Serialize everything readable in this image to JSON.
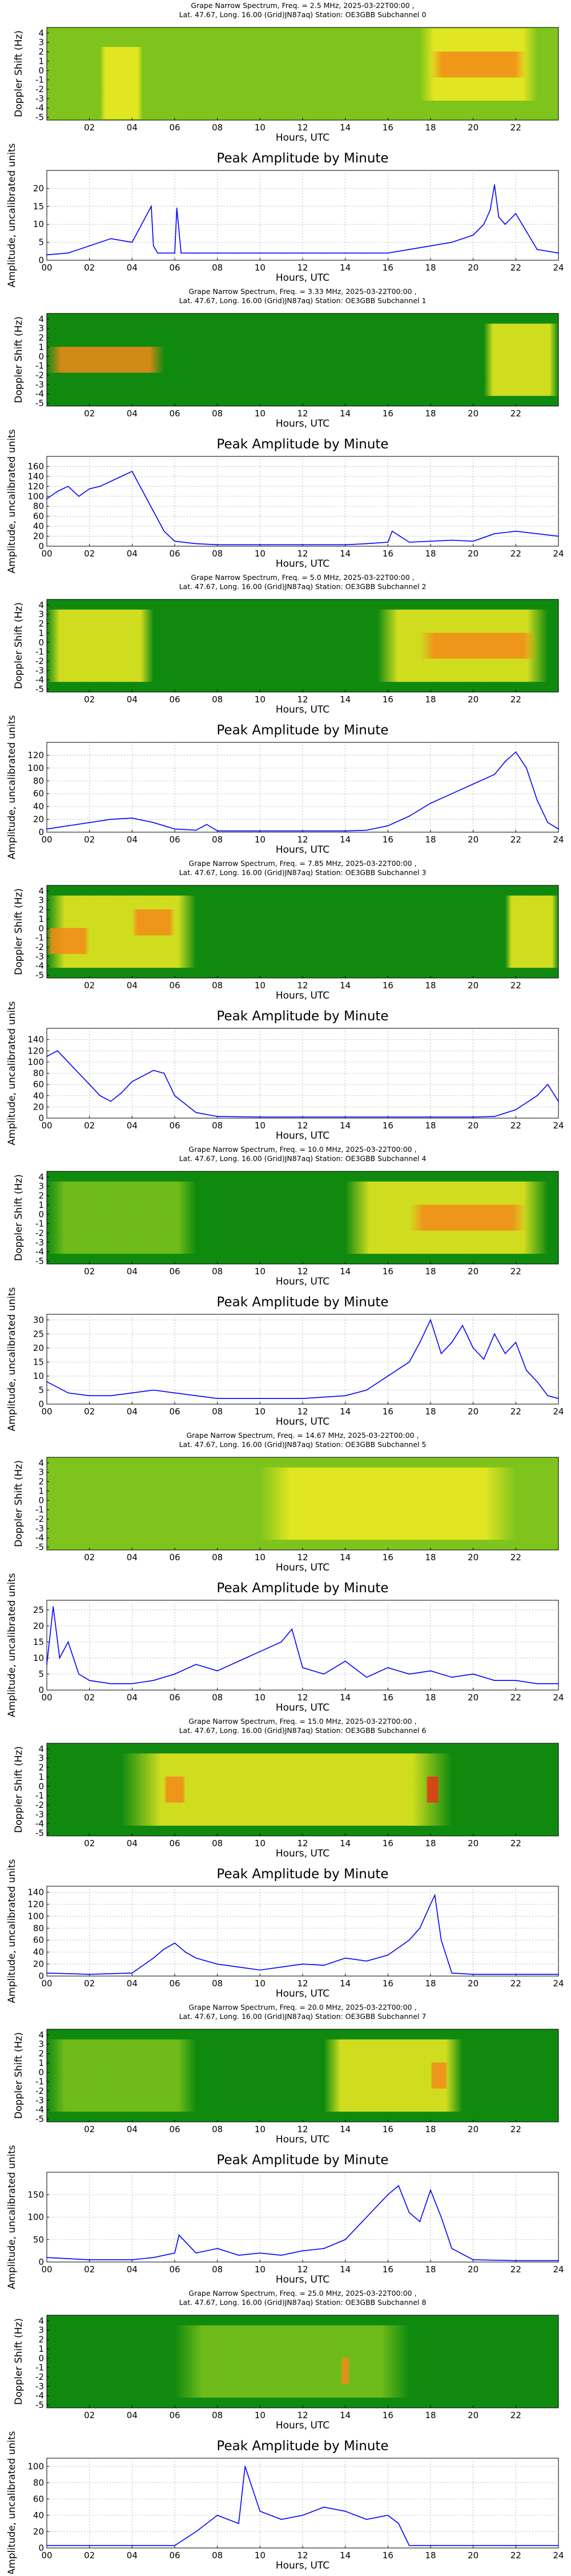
{
  "x_axis": {
    "label": "Hours, UTC",
    "ticks_spectrum": [
      "02",
      "04",
      "06",
      "08",
      "10",
      "12",
      "14",
      "16",
      "18",
      "20",
      "22"
    ],
    "ticks_amplitude": [
      "00",
      "02",
      "04",
      "06",
      "08",
      "10",
      "12",
      "14",
      "16",
      "18",
      "20",
      "22",
      "24"
    ]
  },
  "spectrum_ylabel": "Doppler Shift (Hz)",
  "spectrum_yticks": [
    "4",
    "3",
    "2",
    "1",
    "0",
    "-1",
    "-2",
    "-3",
    "-4",
    "-5"
  ],
  "amplitude_title": "Peak Amplitude by Minute",
  "amplitude_ylabel": "Amplitude, uncalibrated units",
  "colors": {
    "line": "#0000ff",
    "grid": "#aaaaaa",
    "spectrum_bg": "#0f8a0f"
  },
  "chart_data": [
    {
      "type": "heatmap",
      "title": "Grape Narrow Spectrum, Freq. = 2.5 MHz, 2025-03-22T00:00 ,",
      "subtitle": "Lat.  47.67, Long.  16.00 (Grid)JN87aq) Station: OE3GBB Subchannel 0",
      "xlabel": "Hours, UTC",
      "ylabel": "Doppler Shift (Hz)",
      "xlim": [
        0,
        24
      ],
      "ylim": [
        -5,
        5
      ],
      "base_color": "yellow-green",
      "activity": [
        {
          "from": 2.5,
          "to": 4.5,
          "color": "yellow",
          "center_hz": -1
        },
        {
          "from": 17.5,
          "to": 23,
          "color": "yellow",
          "center_hz": 1
        },
        {
          "from": 18,
          "to": 22.5,
          "color": "orange",
          "center_hz": 1
        }
      ]
    },
    {
      "type": "line",
      "title": "Peak Amplitude by Minute",
      "xlabel": "Hours, UTC",
      "ylabel": "Amplitude, uncalibrated units",
      "xlim": [
        0,
        24
      ],
      "ylim": [
        0,
        25
      ],
      "yticks": [
        0,
        5,
        10,
        15,
        20
      ],
      "x": [
        0,
        1,
        2,
        3,
        4,
        4.9,
        5,
        5.2,
        6,
        6.1,
        6.3,
        7,
        8,
        9,
        10,
        11,
        12,
        13,
        14,
        15,
        16,
        17,
        18,
        19,
        20,
        20.5,
        20.8,
        21,
        21.2,
        21.5,
        22,
        22.5,
        23,
        24
      ],
      "y": [
        1.5,
        2,
        4,
        6,
        5,
        15,
        4,
        2,
        2,
        14.5,
        2,
        2,
        2,
        2,
        2,
        2,
        2,
        2,
        2,
        2,
        2,
        3,
        4,
        5,
        7,
        10,
        14,
        21,
        12,
        10,
        13,
        8,
        3,
        2
      ]
    },
    {
      "type": "heatmap",
      "title": "Grape Narrow Spectrum, Freq. = 3.33 MHz, 2025-03-22T00:00 ,",
      "subtitle": "Lat.  47.67, Long.  16.00 (Grid)JN87aq) Station: OE3GBB Subchannel 1",
      "xlabel": "Hours, UTC",
      "ylabel": "Doppler Shift (Hz)",
      "xlim": [
        0,
        24
      ],
      "ylim": [
        -5,
        5
      ],
      "base_color": "green",
      "activity": [
        {
          "from": 0,
          "to": 5.5,
          "color": "orange",
          "center_hz": 0
        },
        {
          "from": 20.5,
          "to": 24,
          "color": "yellow",
          "center_hz": 0
        }
      ]
    },
    {
      "type": "line",
      "title": "Peak Amplitude by Minute",
      "xlabel": "Hours, UTC",
      "ylabel": "Amplitude, uncalibrated units",
      "xlim": [
        0,
        24
      ],
      "ylim": [
        0,
        180
      ],
      "yticks": [
        0,
        20,
        40,
        60,
        80,
        100,
        120,
        140,
        160
      ],
      "x": [
        0,
        0.5,
        1,
        1.5,
        2,
        2.5,
        3,
        3.5,
        4,
        4.5,
        5,
        5.5,
        6,
        7,
        8,
        10,
        12,
        14,
        15,
        16,
        16.2,
        17,
        18,
        19,
        20,
        21,
        22,
        23,
        24
      ],
      "y": [
        95,
        110,
        120,
        100,
        115,
        120,
        130,
        140,
        150,
        110,
        70,
        30,
        10,
        5,
        3,
        3,
        3,
        3,
        5,
        8,
        30,
        8,
        10,
        12,
        10,
        25,
        30,
        25,
        20
      ]
    },
    {
      "type": "heatmap",
      "title": "Grape Narrow Spectrum, Freq. = 5.0 MHz, 2025-03-22T00:00 ,",
      "subtitle": "Lat.  47.67, Long.  16.00 (Grid)JN87aq) Station: OE3GBB Subchannel 2",
      "xlabel": "Hours, UTC",
      "ylabel": "Doppler Shift (Hz)",
      "xlim": [
        0,
        24
      ],
      "ylim": [
        -5,
        5
      ],
      "base_color": "green",
      "activity": [
        {
          "from": 0,
          "to": 5,
          "color": "yellow",
          "center_hz": 0
        },
        {
          "from": 15.5,
          "to": 23.5,
          "color": "yellow",
          "center_hz": 0
        },
        {
          "from": 17.5,
          "to": 23,
          "color": "orange",
          "center_hz": 0
        }
      ]
    },
    {
      "type": "line",
      "title": "Peak Amplitude by Minute",
      "xlabel": "Hours, UTC",
      "ylabel": "Amplitude, uncalibrated units",
      "xlim": [
        0,
        24
      ],
      "ylim": [
        0,
        140
      ],
      "yticks": [
        0,
        20,
        40,
        60,
        80,
        100,
        120
      ],
      "x": [
        0,
        1,
        2,
        3,
        4,
        5,
        6,
        7,
        7.5,
        8,
        10,
        12,
        14,
        15,
        16,
        17,
        18,
        19,
        20,
        21,
        21.5,
        22,
        22.5,
        23,
        23.5,
        24
      ],
      "y": [
        5,
        10,
        15,
        20,
        22,
        15,
        5,
        3,
        12,
        2,
        2,
        2,
        2,
        3,
        10,
        25,
        45,
        60,
        75,
        90,
        110,
        125,
        100,
        50,
        15,
        5
      ]
    },
    {
      "type": "heatmap",
      "title": "Grape Narrow Spectrum, Freq. = 7.85 MHz, 2025-03-22T00:00 ,",
      "subtitle": "Lat.  47.67, Long.  16.00 (Grid)JN87aq) Station: OE3GBB Subchannel 3",
      "xlabel": "Hours, UTC",
      "ylabel": "Doppler Shift (Hz)",
      "xlim": [
        0,
        24
      ],
      "ylim": [
        -5,
        5
      ],
      "base_color": "green",
      "activity": [
        {
          "from": 0,
          "to": 7,
          "color": "yellow",
          "center_hz": 0
        },
        {
          "from": 0,
          "to": 2,
          "color": "orange",
          "center_hz": -1
        },
        {
          "from": 4,
          "to": 6,
          "color": "orange",
          "center_hz": 1
        },
        {
          "from": 21.5,
          "to": 24,
          "color": "yellow",
          "center_hz": 0
        }
      ]
    },
    {
      "type": "line",
      "title": "Peak Amplitude by Minute",
      "xlabel": "Hours, UTC",
      "ylabel": "Amplitude, uncalibrated units",
      "xlim": [
        0,
        24
      ],
      "ylim": [
        0,
        160
      ],
      "yticks": [
        0,
        20,
        40,
        60,
        80,
        100,
        120,
        140
      ],
      "x": [
        0,
        0.5,
        1,
        1.5,
        2,
        2.5,
        3,
        3.5,
        4,
        4.5,
        5,
        5.5,
        6,
        6.5,
        7,
        8,
        10,
        12,
        14,
        16,
        18,
        20,
        21,
        22,
        23,
        23.5,
        24
      ],
      "y": [
        110,
        120,
        100,
        80,
        60,
        40,
        30,
        45,
        65,
        75,
        85,
        80,
        40,
        25,
        10,
        3,
        2,
        2,
        2,
        2,
        2,
        2,
        3,
        15,
        40,
        60,
        30
      ]
    },
    {
      "type": "heatmap",
      "title": "Grape Narrow Spectrum, Freq. = 10.0 MHz, 2025-03-22T00:00 ,",
      "subtitle": "Lat.  47.67, Long.  16.00 (Grid)JN87aq) Station: OE3GBB Subchannel 4",
      "xlabel": "Hours, UTC",
      "ylabel": "Doppler Shift (Hz)",
      "xlim": [
        0,
        24
      ],
      "ylim": [
        -5,
        5
      ],
      "base_color": "green",
      "activity": [
        {
          "from": 0,
          "to": 7,
          "color": "yellow-green",
          "center_hz": 0
        },
        {
          "from": 14,
          "to": 23.5,
          "color": "yellow",
          "center_hz": 0
        },
        {
          "from": 17,
          "to": 22.5,
          "color": "orange",
          "center_hz": 0
        }
      ]
    },
    {
      "type": "line",
      "title": "Peak Amplitude by Minute",
      "xlabel": "Hours, UTC",
      "ylabel": "Amplitude, uncalibrated units",
      "xlim": [
        0,
        24
      ],
      "ylim": [
        0,
        32
      ],
      "yticks": [
        0,
        5,
        10,
        15,
        20,
        25,
        30
      ],
      "x": [
        0,
        1,
        2,
        3,
        4,
        5,
        6,
        7,
        8,
        10,
        12,
        14,
        15,
        16,
        17,
        17.5,
        18,
        18.5,
        19,
        19.5,
        20,
        20.5,
        21,
        21.5,
        22,
        22.5,
        23,
        23.5,
        24
      ],
      "y": [
        8,
        4,
        3,
        3,
        4,
        5,
        4,
        3,
        2,
        2,
        2,
        3,
        5,
        10,
        15,
        22,
        30,
        18,
        22,
        28,
        20,
        16,
        25,
        18,
        22,
        12,
        8,
        3,
        2
      ]
    },
    {
      "type": "heatmap",
      "title": "Grape Narrow Spectrum, Freq. = 14.67 MHz, 2025-03-22T00:00 ,",
      "subtitle": "Lat.  47.67, Long.  16.00 (Grid)JN87aq) Station: OE3GBB Subchannel 5",
      "xlabel": "Hours, UTC",
      "ylabel": "Doppler Shift (Hz)",
      "xlim": [
        0,
        24
      ],
      "ylim": [
        -5,
        5
      ],
      "base_color": "yellow-green",
      "activity": [
        {
          "from": 10,
          "to": 22,
          "color": "yellow",
          "center_hz": 0
        }
      ]
    },
    {
      "type": "line",
      "title": "Peak Amplitude by Minute",
      "xlabel": "Hours, UTC",
      "ylabel": "Amplitude, uncalibrated units",
      "xlim": [
        0,
        24
      ],
      "ylim": [
        0,
        28
      ],
      "yticks": [
        0,
        5,
        10,
        15,
        20,
        25
      ],
      "x": [
        0,
        0.3,
        0.6,
        1,
        1.5,
        2,
        3,
        4,
        5,
        6,
        7,
        8,
        9,
        10,
        11,
        11.5,
        12,
        13,
        14,
        15,
        16,
        17,
        18,
        19,
        20,
        21,
        22,
        23,
        24
      ],
      "y": [
        8,
        26,
        10,
        15,
        5,
        3,
        2,
        2,
        3,
        5,
        8,
        6,
        9,
        12,
        15,
        19,
        7,
        5,
        9,
        4,
        7,
        5,
        6,
        4,
        5,
        3,
        3,
        2,
        2
      ]
    },
    {
      "type": "heatmap",
      "title": "Grape Narrow Spectrum, Freq. = 15.0 MHz, 2025-03-22T00:00 ,",
      "subtitle": "Lat.  47.67, Long.  16.00 (Grid)JN87aq) Station: OE3GBB Subchannel 6",
      "xlabel": "Hours, UTC",
      "ylabel": "Doppler Shift (Hz)",
      "xlim": [
        0,
        24
      ],
      "ylim": [
        -5,
        5
      ],
      "base_color": "green",
      "activity": [
        {
          "from": 3.5,
          "to": 19,
          "color": "yellow",
          "center_hz": 0
        },
        {
          "from": 5.5,
          "to": 6.5,
          "color": "orange",
          "center_hz": 0
        },
        {
          "from": 17.8,
          "to": 18.4,
          "color": "red",
          "center_hz": 0
        }
      ]
    },
    {
      "type": "line",
      "title": "Peak Amplitude by Minute",
      "xlabel": "Hours, UTC",
      "ylabel": "Amplitude, uncalibrated units",
      "xlim": [
        0,
        24
      ],
      "ylim": [
        0,
        150
      ],
      "yticks": [
        0,
        20,
        40,
        60,
        80,
        100,
        120,
        140
      ],
      "x": [
        0,
        2,
        4,
        5,
        5.5,
        6,
        6.5,
        7,
        8,
        9,
        10,
        11,
        12,
        13,
        14,
        15,
        16,
        17,
        17.5,
        18,
        18.2,
        18.5,
        19,
        20,
        22,
        24
      ],
      "y": [
        5,
        3,
        5,
        30,
        45,
        55,
        40,
        30,
        20,
        15,
        10,
        15,
        20,
        18,
        30,
        25,
        35,
        60,
        80,
        120,
        135,
        60,
        5,
        3,
        3,
        3
      ]
    },
    {
      "type": "heatmap",
      "title": "Grape Narrow Spectrum, Freq. = 20.0 MHz, 2025-03-22T00:00 ,",
      "subtitle": "Lat.  47.67, Long.  16.00 (Grid)JN87aq) Station: OE3GBB Subchannel 7",
      "xlabel": "Hours, UTC",
      "ylabel": "Doppler Shift (Hz)",
      "xlim": [
        0,
        24
      ],
      "ylim": [
        -5,
        5
      ],
      "base_color": "green",
      "activity": [
        {
          "from": 0,
          "to": 7,
          "color": "yellow-green",
          "center_hz": 0
        },
        {
          "from": 13,
          "to": 19.5,
          "color": "yellow",
          "center_hz": 0
        },
        {
          "from": 18,
          "to": 18.8,
          "color": "orange",
          "center_hz": 0
        }
      ]
    },
    {
      "type": "line",
      "title": "Peak Amplitude by Minute",
      "xlabel": "Hours, UTC",
      "ylabel": "Amplitude, uncalibrated units",
      "xlim": [
        0,
        24
      ],
      "ylim": [
        0,
        200
      ],
      "yticks": [
        0,
        50,
        100,
        150
      ],
      "x": [
        0,
        2,
        4,
        5,
        6,
        6.2,
        7,
        8,
        9,
        10,
        11,
        12,
        13,
        14,
        15,
        16,
        16.5,
        17,
        17.5,
        18,
        18.5,
        19,
        20,
        22,
        24
      ],
      "y": [
        10,
        5,
        5,
        10,
        20,
        60,
        20,
        30,
        15,
        20,
        15,
        25,
        30,
        50,
        100,
        150,
        170,
        110,
        90,
        160,
        100,
        30,
        5,
        3,
        3
      ]
    },
    {
      "type": "heatmap",
      "title": "Grape Narrow Spectrum, Freq. = 25.0 MHz, 2025-03-22T00:00 ,",
      "subtitle": "Lat.  47.67, Long.  16.00 (Grid)JN87aq) Station: OE3GBB Subchannel 8",
      "xlabel": "Hours, UTC",
      "ylabel": "Doppler Shift (Hz)",
      "xlim": [
        0,
        24
      ],
      "ylim": [
        -5,
        5
      ],
      "base_color": "green",
      "activity": [
        {
          "from": 6,
          "to": 17,
          "color": "yellow-green",
          "center_hz": 0
        },
        {
          "from": 13.8,
          "to": 14.2,
          "color": "orange",
          "center_hz": -1
        }
      ]
    },
    {
      "type": "line",
      "title": "Peak Amplitude by Minute",
      "xlabel": "Hours, UTC",
      "ylabel": "Amplitude, uncalibrated units",
      "xlim": [
        0,
        24
      ],
      "ylim": [
        0,
        110
      ],
      "yticks": [
        0,
        20,
        40,
        60,
        80,
        100
      ],
      "x": [
        0,
        2,
        4,
        6,
        7,
        8,
        9,
        9.3,
        10,
        11,
        12,
        13,
        14,
        15,
        16,
        16.5,
        17,
        18,
        20,
        22,
        24
      ],
      "y": [
        3,
        3,
        3,
        3,
        20,
        40,
        30,
        100,
        45,
        35,
        40,
        50,
        45,
        35,
        40,
        30,
        3,
        3,
        3,
        3,
        3
      ]
    }
  ]
}
